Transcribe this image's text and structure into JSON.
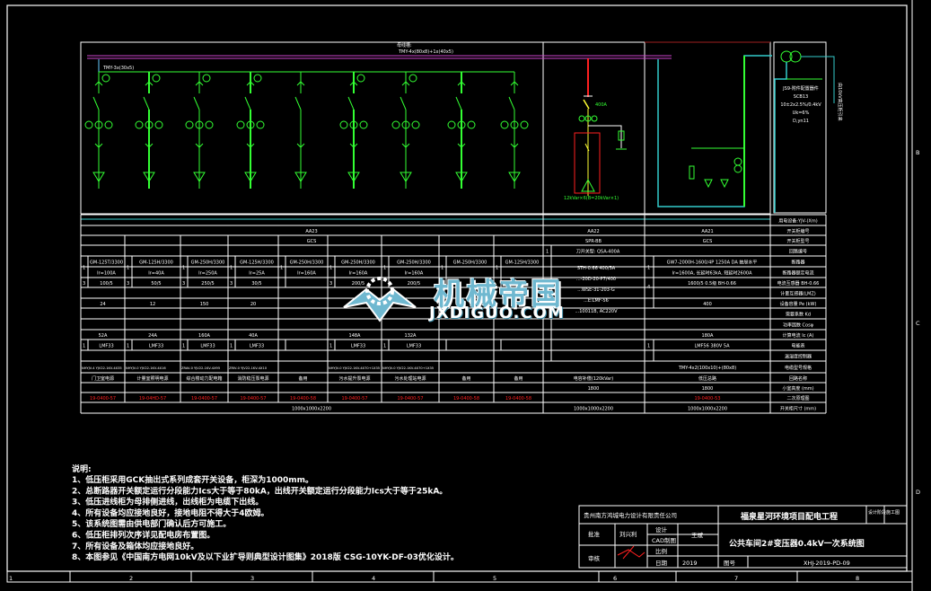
{
  "colors": {
    "background": "#000000",
    "lines": "#ffffff",
    "busbar": "#cc44cc",
    "circuit": "#33ff33",
    "frame": "#33cccc",
    "red": "#ff2020"
  },
  "diagram": {
    "busbar_label_1": "母线槽:",
    "busbar_label_2": "TMY-4x(80x8)+1x(40x5)",
    "branch_bus_label": "TMY-3x(30x5)",
    "capacitor_switch_rating": "400A",
    "capacitor_label": "12kVar×6(B=20kVar×1)",
    "transformer_lines": [
      "JS9-附件配置器件",
      "SCB13",
      "10±2x2.5%/0.4kV",
      "Uk=6%",
      "D,yn11",
      "",
      ""
    ],
    "transformer_feed_label": "由10kV高压柜引来"
  },
  "table": {
    "row_labels": [
      "用电设备:YJV-(Xm)",
      "开关柜编号",
      "开关柜型号",
      "回路编号",
      "断路器",
      "断路器额定电流",
      "电流互感器 BH-0.66",
      "计量互感器(LMZ)",
      "设备容量 Pe (kW)",
      "需要系数 Kd",
      "功率因数 Cosφ",
      "计算电流 Ic (A)",
      "电能表",
      "温湿度控制器",
      "电缆型号规格",
      "回路名称",
      "小室高度 (mm)",
      "二次原理图",
      "开关柜尺寸 (mm)"
    ],
    "aa23": {
      "cabinet_no": "AA23",
      "cabinet_type": "GCS",
      "size": "1000x1000x2200",
      "feeders": [
        {
          "qty": "1",
          "breaker": "GM-125T/3300",
          "ir": "Ir=100A",
          "ct_qty": "3",
          "ct": "100/5",
          "pe": "24",
          "ic": "52A",
          "meter_qty": "1",
          "meter": "LMF33",
          "cable": "NHYJV-4 YJV22-1KV-4X35",
          "name": "门卫室电源",
          "diagram": "19-0400-57"
        },
        {
          "qty": "1",
          "breaker": "GM-125H/3300",
          "ir": "Ir=40A",
          "ct_qty": "3",
          "ct": "50/5",
          "pe": "12",
          "ic": "24A",
          "meter_qty": "1",
          "meter": "LMF33",
          "cable": "NHYJV-0 YJV22-1KV-4X16",
          "name": "计量室照明电源",
          "diagram": "19-04HD-57"
        },
        {
          "qty": "1",
          "breaker": "GM-250H/3300",
          "ir": "Ir=250A",
          "ct_qty": "3",
          "ct": "250/5",
          "pe": "150",
          "ic": "160A",
          "meter_qty": "1",
          "meter": "LMF33",
          "cable": "ZRAV-0 YJV22-1KV-4X95",
          "name": "综合楼动力配电箱",
          "diagram": "19-0400-57"
        },
        {
          "qty": "1",
          "breaker": "GM-125H/3300",
          "ir": "Ir=25A",
          "ct_qty": "3",
          "ct": "30/5",
          "pe": "20",
          "ic": "40A",
          "meter_qty": "1",
          "meter": "LMF33",
          "cable": "ZRIV-0 YJV22-1KV-4X10",
          "name": "消防稳压泵电源",
          "diagram": "19-0400-57"
        },
        {
          "qty": "1",
          "breaker": "GM-250H/3300",
          "ir": "Ir=160A",
          "ct_qty": "",
          "ct": "",
          "pe": "",
          "ic": "",
          "meter_qty": "",
          "meter": "",
          "cable": "",
          "name": "备用",
          "diagram": "19-0400-58"
        },
        {
          "qty": "1",
          "breaker": "GM-250H/3300",
          "ir": "Ir=160A",
          "ct_qty": "3",
          "ct": "200/5",
          "pe": "",
          "ic": "148A",
          "meter_qty": "1",
          "meter": "LMF33",
          "cable": "NHYJV-0 YJV22-1KV-4X70+1X35",
          "name": "污水提升泵电源",
          "diagram": "19-0400-57"
        },
        {
          "qty": "1",
          "breaker": "GM-250H/3300",
          "ir": "Ir=160A",
          "ct_qty": "",
          "ct": "200/5",
          "pe": "",
          "ic": "132A",
          "meter_qty": "1",
          "meter": "LMF33",
          "cable": "NHYJV-0 YJV22-1KV-4X70+1X35",
          "name": "污水处理站电源",
          "diagram": "19-0400-57"
        },
        {
          "qty": "1",
          "breaker": "GM-250H/3300",
          "ir": "",
          "ct_qty": "",
          "ct": "",
          "pe": "",
          "ic": "",
          "meter_qty": "",
          "meter": "",
          "cable": "",
          "name": "备用",
          "diagram": "19-0400-58"
        },
        {
          "qty": "1",
          "breaker": "GM-125H/3300",
          "ir": "",
          "ct_qty": "",
          "ct": "",
          "pe": "",
          "ic": "",
          "meter_qty": "",
          "meter": "",
          "cable": "",
          "name": "备用",
          "diagram": "19-0400-58"
        }
      ]
    },
    "aa22": {
      "cabinet_no": "AA22",
      "cabinet_type": "SPR-BB",
      "qty": "1",
      "switch": "刀开关型: QSA-400A",
      "details": [
        "STH-0.66 400/5A",
        "...-20D-20-P7/400",
        "...WSE-31-203-G",
        "...E:LMF-56",
        "...10011B, AC220V"
      ],
      "name": "电容补偿(120kVar)",
      "height": "1800",
      "size": "1000x1000x2200"
    },
    "aa21": {
      "cabinet_no": "AA21",
      "cabinet_type": "GCS",
      "qty_a": "1",
      "qty_b": "4",
      "breaker": "GW7-2000H-1600/4P 1250A DA 抽屉水平",
      "rating": "Ir=1600A, 长延时63kA, 短延时2600A",
      "ct": "1600/5 0.5级 BH-0.66",
      "pe": "400",
      "ic": "180A",
      "meter_qty": "1",
      "meter": "LMF56 380V 5A",
      "cable": "TMY-4x2(100x10)+(80x8)",
      "name": "低压总路",
      "height": "1800",
      "diagram": "19-0400-53",
      "size": "1000x1000x2200"
    }
  },
  "notes": {
    "title": "说明:",
    "items": [
      "1、低压柜采用GCK抽出式系列成套开关设备，柜深为1000mm。",
      "2、总断路器开关额定运行分段能力Ics大于等于80kA，出线开关额定运行分段能力Ics大于等于25kA。",
      "3、低压进线柜为母排侧进线，出线柜为电缆下出线。",
      "4、所有设备均应接地良好，接地电阻不得大于4欧姆。",
      "5、该系统图需由供电部门确认后方可施工。",
      "6、低压柜排列次序详见配电房布置图。",
      "7、所有设备及箱体均应接地良好。",
      "8、本图参见《中国南方电网10kV及以下业扩导则典型设计图集》2018版  CSG-10YK-DF-03优化设计。"
    ]
  },
  "title_block": {
    "company": "贵州南方鸿城电力设计有限责任公司",
    "project": "福泉星河环境项目配电工程",
    "drawing_title": "公共车间2#变压器0.4kV一次系统图",
    "approve_label": "批准",
    "approve_name": "刘兴利",
    "review_label": "审核",
    "design_label": "设计",
    "cad_label": "CAD制图",
    "scale_label": "比例",
    "date_label": "日期",
    "designer": "王斌",
    "date": "2019",
    "drawing_no_label": "图号",
    "drawing_no": "XHJ-2019-PD-09",
    "stage_label": "设计阶段",
    "stage": "施工图"
  },
  "frame": {
    "zones_right": [
      "B",
      "C",
      "D"
    ],
    "zones_bottom": [
      "1",
      "2",
      "3",
      "4",
      "5",
      "6",
      "7",
      "8"
    ]
  },
  "watermark": {
    "cn": "机械帝国",
    "en": "JXDIGUO.COM"
  }
}
